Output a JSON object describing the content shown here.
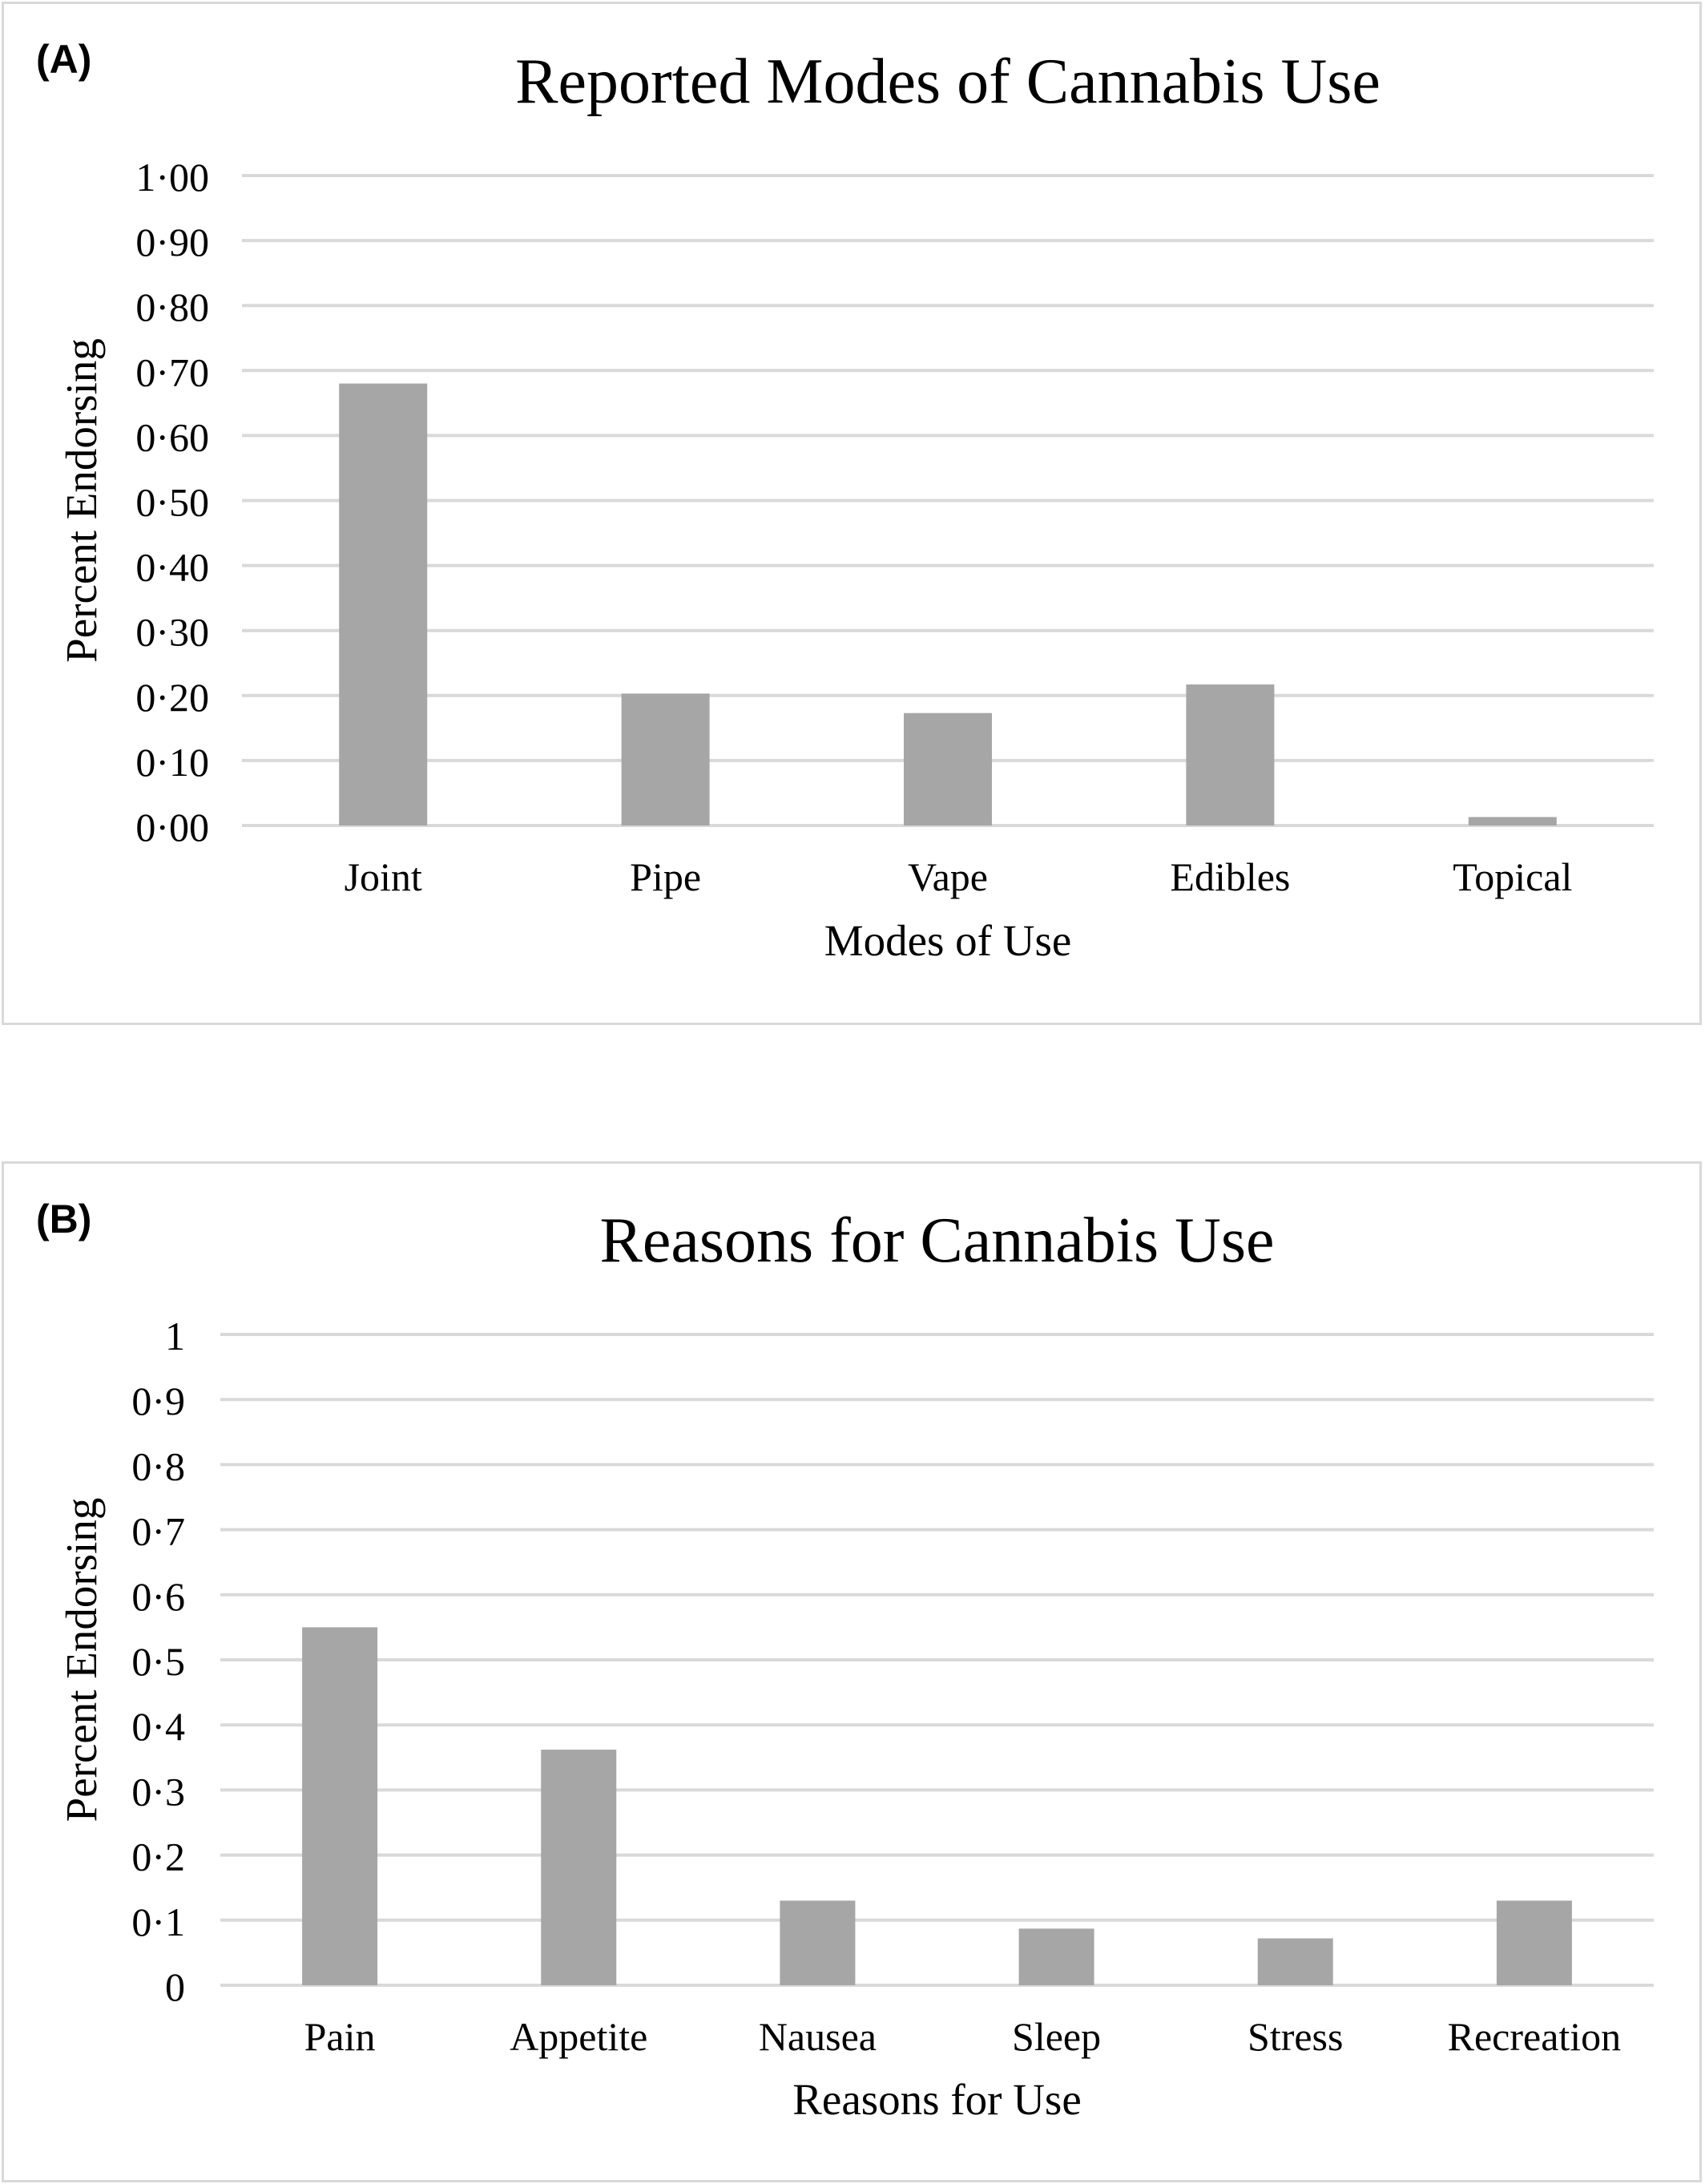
{
  "chart_data": [
    {
      "panel_label": "(A)",
      "type": "bar",
      "title": "Reported Modes of Cannabis Use",
      "xlabel": "Modes of Use",
      "ylabel": "Percent Endorsing",
      "categories": [
        "Joint",
        "Pipe",
        "Vape",
        "Edibles",
        "Topical"
      ],
      "values": [
        0.68,
        0.203,
        0.173,
        0.217,
        0.013
      ],
      "ylim": [
        0,
        1
      ],
      "yticks": [
        "0·00",
        "0·10",
        "0·20",
        "0·30",
        "0·40",
        "0·50",
        "0·60",
        "0·70",
        "0·80",
        "0·90",
        "1·00"
      ],
      "grid": true,
      "legend": "none",
      "bar_color": "#a6a6a6",
      "grid_color": "#d9d9d9"
    },
    {
      "panel_label": "(B)",
      "type": "bar",
      "title": "Reasons for Cannabis Use",
      "xlabel": "Reasons for Use",
      "ylabel": "Percent Endorsing",
      "categories": [
        "Pain",
        "Appetite",
        "Nausea",
        "Sleep",
        "Stress",
        "Recreation"
      ],
      "values": [
        0.55,
        0.362,
        0.13,
        0.087,
        0.072,
        0.13
      ],
      "ylim": [
        0,
        1
      ],
      "yticks": [
        "0",
        "0·1",
        "0·2",
        "0·3",
        "0·4",
        "0·5",
        "0·6",
        "0·7",
        "0·8",
        "0·9",
        "1"
      ],
      "grid": true,
      "legend": "none",
      "bar_color": "#a6a6a6",
      "grid_color": "#d9d9d9"
    }
  ]
}
